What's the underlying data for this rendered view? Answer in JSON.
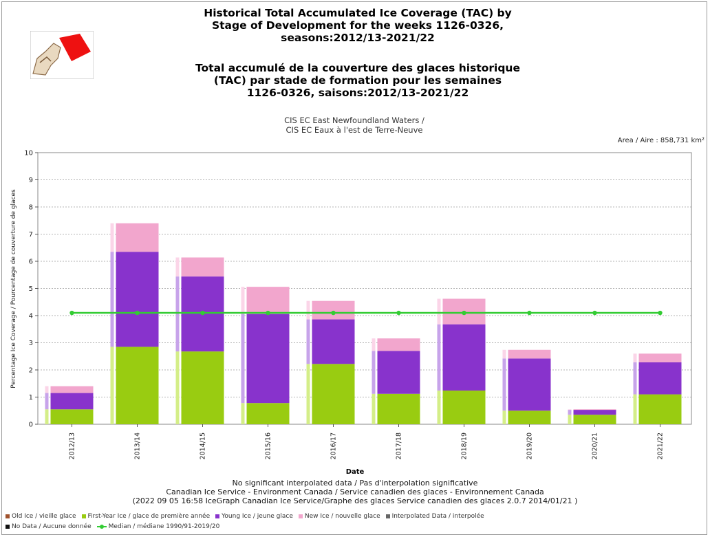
{
  "header": {
    "title_en": [
      "Historical Total Accumulated Ice Coverage (TAC) by",
      "Stage of Development for the weeks 1126-0326,",
      "seasons:2012/13-2021/22"
    ],
    "title_fr": [
      "Total accumulé de la couverture des glaces historique",
      "(TAC) par stade de formation pour les semaines",
      "1126-0326, saisons:2012/13-2021/22"
    ],
    "subtitle": [
      "CIS EC East Newfoundland Waters /",
      "CIS EC Eaux à l'est de Terre-Neuve"
    ],
    "area": "Area / Aire : 858,731 km²",
    "logo_icon": "canadian-ice-service-logo-icon"
  },
  "chart_data": {
    "type": "bar",
    "stacked": true,
    "categories": [
      "2012/13",
      "2013/14",
      "2014/15",
      "2015/16",
      "2016/17",
      "2017/18",
      "2018/19",
      "2019/20",
      "2020/21",
      "2021/22"
    ],
    "series": [
      {
        "name": "First-Year Ice / glace de première année",
        "color": "#99cc11",
        "values": [
          0.55,
          2.85,
          2.68,
          0.78,
          2.22,
          1.12,
          1.24,
          0.5,
          0.35,
          1.1
        ]
      },
      {
        "name": "Young Ice / jeune glace",
        "color": "#8833cc",
        "values": [
          0.6,
          3.5,
          2.76,
          3.28,
          1.64,
          1.58,
          2.44,
          1.92,
          0.18,
          1.18
        ]
      },
      {
        "name": "New Ice / nouvelle glace",
        "color": "#f2a6cd",
        "values": [
          0.25,
          1.05,
          0.7,
          1.0,
          0.68,
          0.46,
          0.94,
          0.32,
          0.02,
          0.32
        ]
      }
    ],
    "median": {
      "name": "Median / médiane 1990/91-2019/20",
      "color": "#33cc33",
      "values": [
        4.1,
        4.1,
        4.1,
        4.1,
        4.1,
        4.1,
        4.1,
        4.1,
        4.1,
        4.1
      ]
    },
    "ylim": [
      0,
      10
    ],
    "yticks": [
      0,
      1,
      2,
      3,
      4,
      5,
      6,
      7,
      8,
      9,
      10
    ],
    "ylabel": "Percentage Ice Coverage / Pourcentage de couverture de glaces",
    "xlabel": "Date",
    "grid": true,
    "legend_position": "bottom"
  },
  "footer": {
    "note": "No significant interpolated data / Pas d'interpolation significative",
    "credit": "Canadian Ice Service - Environment Canada / Service canadien des glaces - Environnement Canada",
    "version": "(2022 09 05 16:58 IceGraph   Canadian Ice Service/Graphe des glaces   Service canadien des glaces 2.0.7 2014/01/21 )"
  },
  "legend": {
    "row1": [
      {
        "label": "Old Ice / vieille glace",
        "color": "#a0522d",
        "kind": "box"
      },
      {
        "label": "First-Year Ice / glace de première année",
        "color": "#99cc11",
        "kind": "box"
      },
      {
        "label": "Young Ice / jeune glace",
        "color": "#8833cc",
        "kind": "box"
      },
      {
        "label": "New Ice / nouvelle glace",
        "color": "#f2a6cd",
        "kind": "box"
      },
      {
        "label": "Interpolated Data / interpolée",
        "color": "#666666",
        "kind": "box"
      }
    ],
    "row2": [
      {
        "label": "No Data / Aucune donnée",
        "color": "#111111",
        "kind": "box"
      },
      {
        "label": "Median / médiane 1990/91-2019/20",
        "color": "#33cc33",
        "kind": "line"
      }
    ]
  }
}
